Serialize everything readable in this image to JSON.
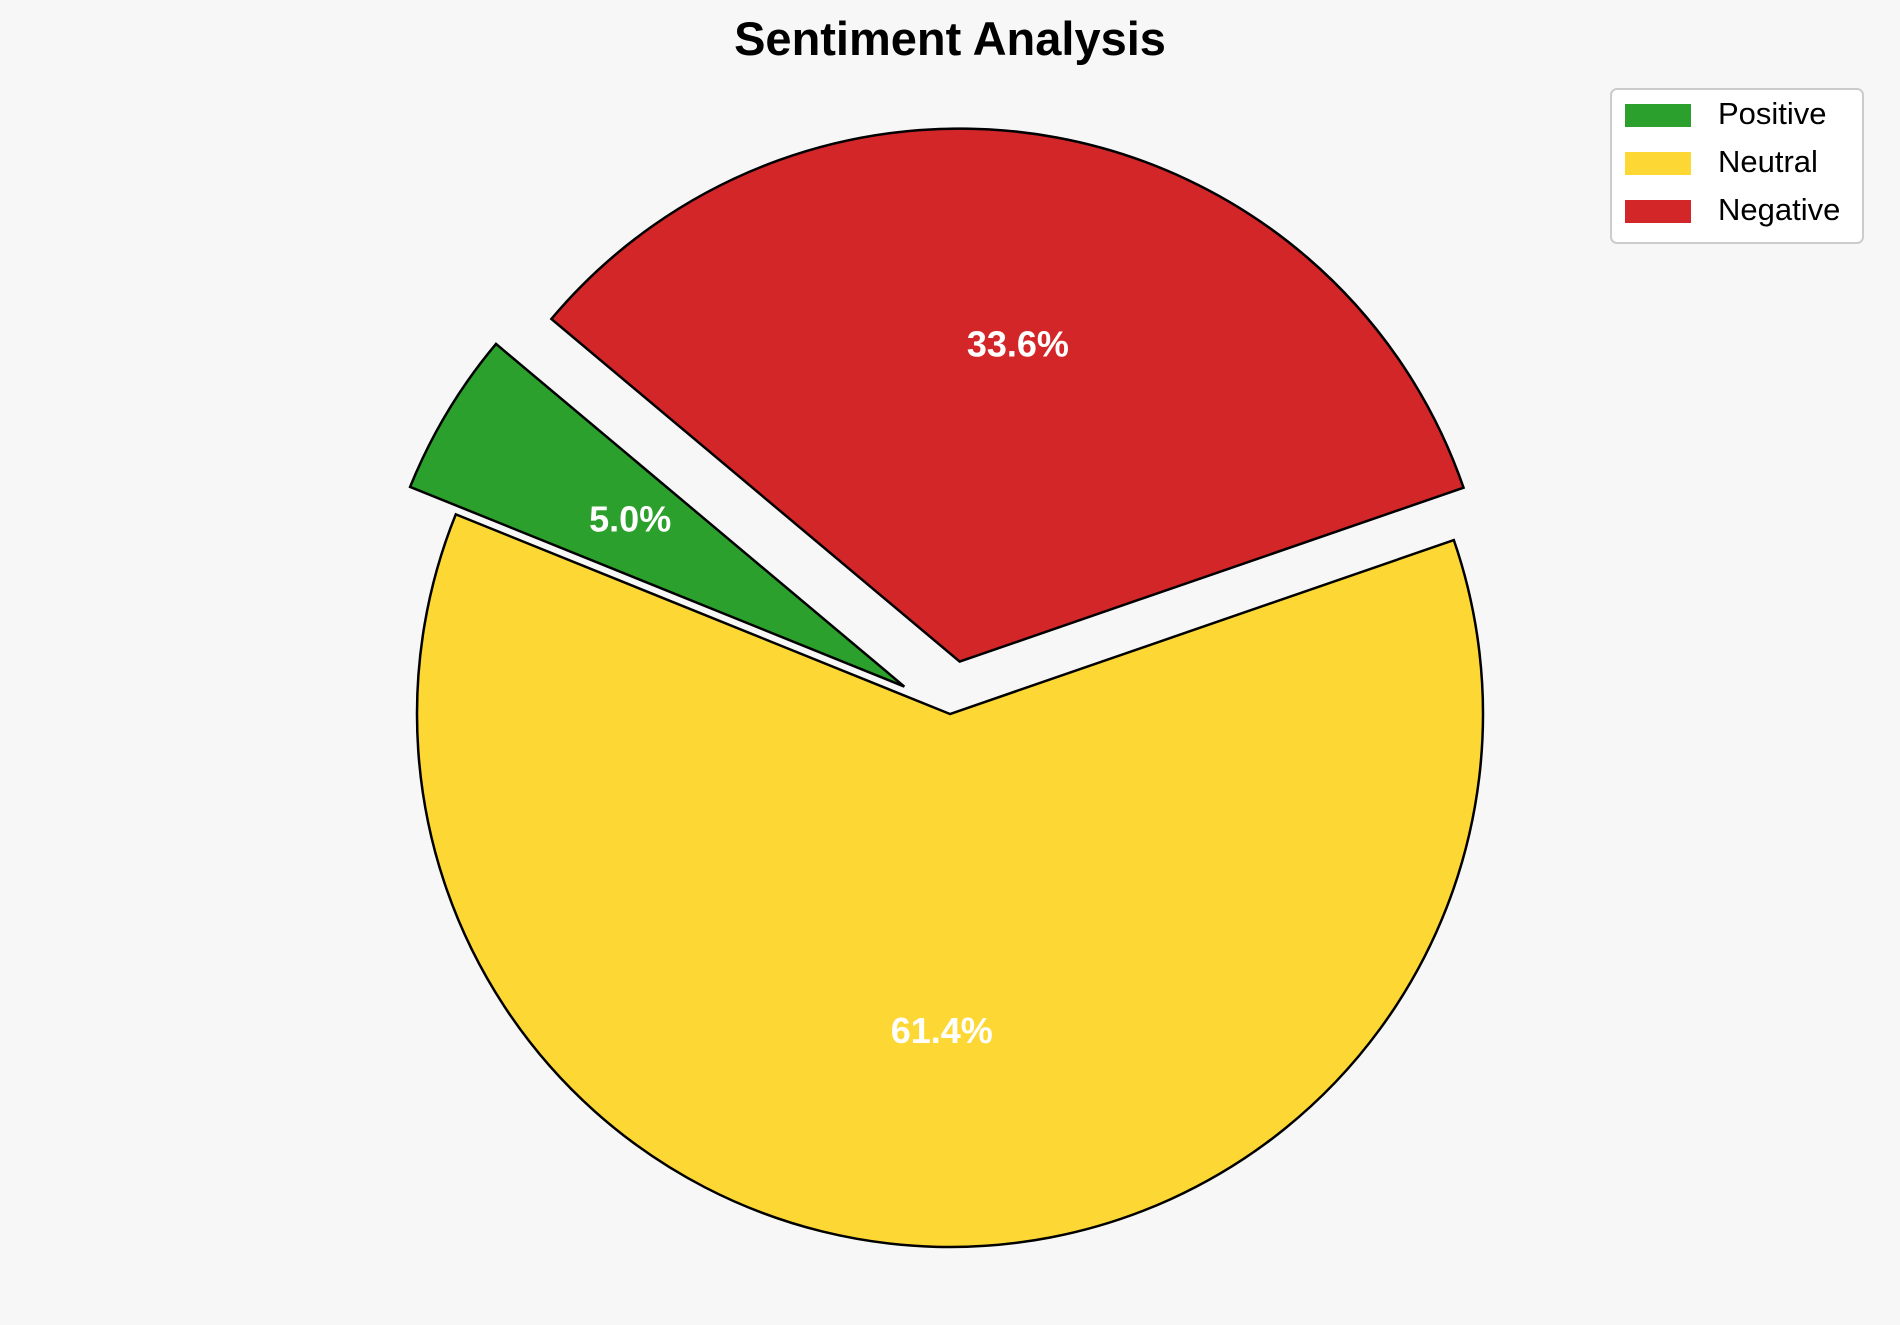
{
  "chart_data": {
    "type": "pie",
    "title": "Sentiment Analysis",
    "slices": [
      {
        "label": "Positive",
        "value": 5.0,
        "display": "5.0%",
        "color": "#2ca02c",
        "explode": 0.1
      },
      {
        "label": "Neutral",
        "value": 61.4,
        "display": "61.4%",
        "color": "#fdd835",
        "explode": 0
      },
      {
        "label": "Negative",
        "value": 33.6,
        "display": "33.6%",
        "color": "#d32628",
        "explode": 0.1
      }
    ],
    "start_angle_deg": 140,
    "legend_position": "top-right"
  }
}
